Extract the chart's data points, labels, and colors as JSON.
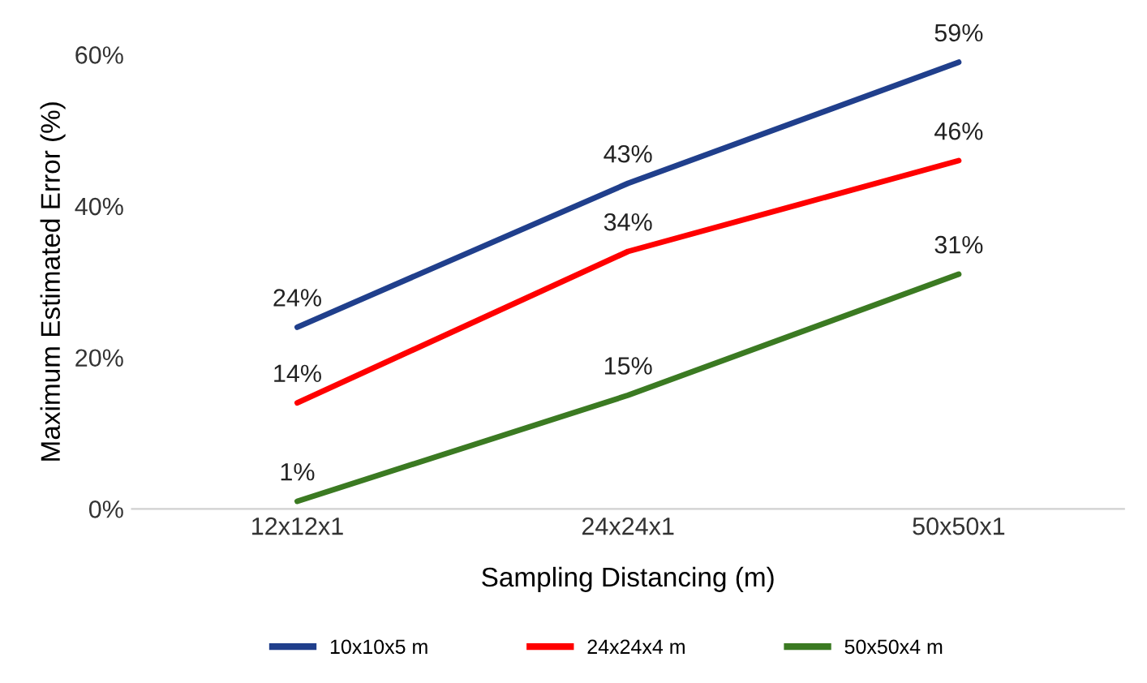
{
  "chart_data": {
    "type": "line",
    "xlabel": "Sampling Distancing (m)",
    "ylabel": "Maximum Estimated Error (%)",
    "categories": [
      "12x12x1",
      "24x24x1",
      "50x50x1"
    ],
    "series": [
      {
        "name": "10x10x5 m",
        "color": "#203f8c",
        "values": [
          24,
          43,
          59
        ],
        "value_labels": [
          "24%",
          "43%",
          "59%"
        ]
      },
      {
        "name": "24x24x4 m",
        "color": "#ff0000",
        "values": [
          14,
          34,
          46
        ],
        "value_labels": [
          "14%",
          "34%",
          "46%"
        ]
      },
      {
        "name": "50x50x4 m",
        "color": "#3b7a22",
        "values": [
          1,
          15,
          31
        ],
        "value_labels": [
          "1%",
          "15%",
          "31%"
        ]
      }
    ],
    "ylim": [
      0,
      60
    ],
    "yticks": [
      {
        "value": 0,
        "label": "0%"
      },
      {
        "value": 20,
        "label": "20%"
      },
      {
        "value": 40,
        "label": "40%"
      },
      {
        "value": 60,
        "label": "60%"
      }
    ],
    "grid": false,
    "legend": "bottom",
    "marker": "none",
    "line_style": "solid"
  }
}
